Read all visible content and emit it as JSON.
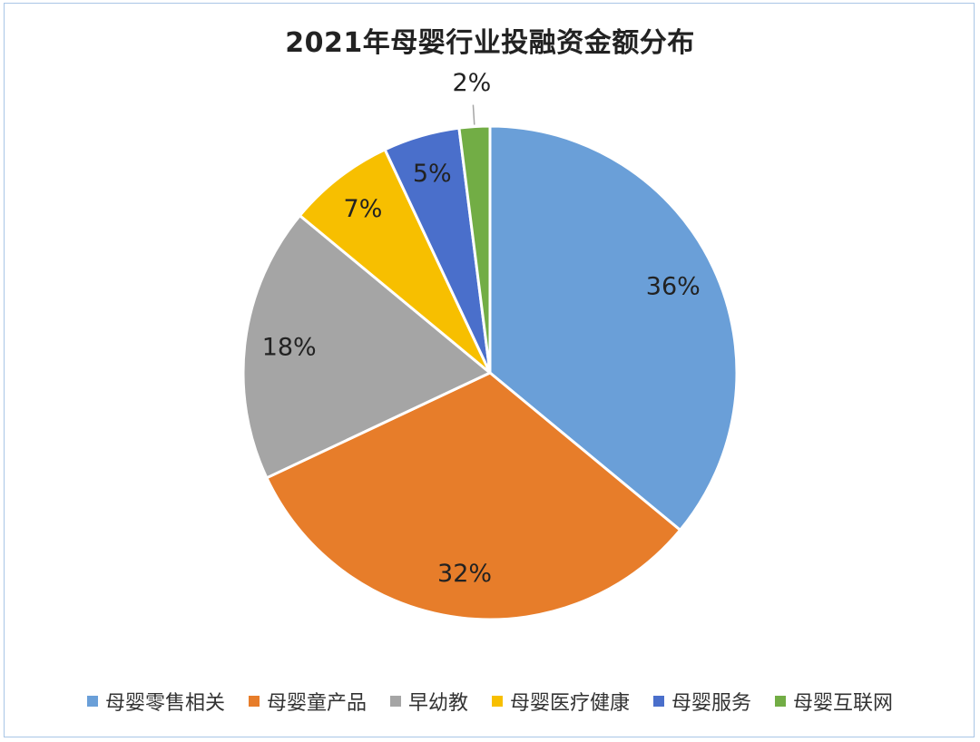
{
  "chart_data": {
    "type": "pie",
    "title": "2021年母婴行业投融资金额分布",
    "categories": [
      "母婴零售相关",
      "母婴童产品",
      "早幼教",
      "母婴医疗健康",
      "母婴服务",
      "母婴互联网"
    ],
    "values": [
      36,
      32,
      18,
      7,
      5,
      2
    ],
    "labels": [
      "36%",
      "32%",
      "18%",
      "7%",
      "5%",
      "2%"
    ],
    "colors": [
      "#6a9fd8",
      "#e77d2a",
      "#a5a5a5",
      "#f7bf00",
      "#4a6fcb",
      "#72ad45"
    ],
    "legend": "bottom"
  }
}
